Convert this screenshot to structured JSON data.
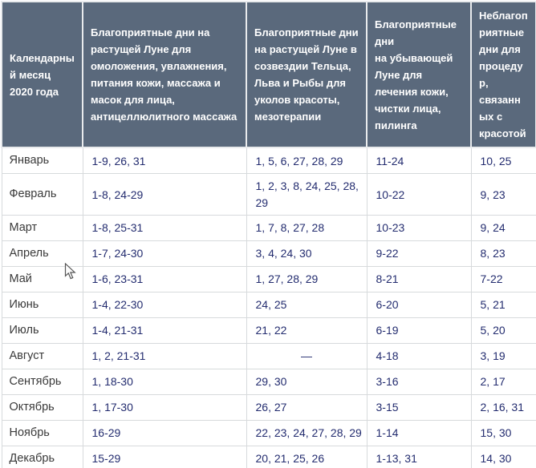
{
  "colors": {
    "header_bg": "#5a697c",
    "header_text": "#ffffff",
    "day_text": "#232c6f",
    "month_text": "#3a3a3a",
    "grid_line": "#d7dadc",
    "header_grid_line": "#e9ebed"
  },
  "table": {
    "columns": [
      {
        "key": "month",
        "label": "Календарный месяц 2020 года"
      },
      {
        "key": "rejuvenation-waxing-moon",
        "label": "Благоприятные дни на растущей Луне для омоложения, увлажнения, питания кожи, массажа и масок для лица, антицеллюлитного массажа"
      },
      {
        "key": "beauty-injections",
        "label": "Благоприятные дни на растущей Луне в созвездии Тельца, Льва и Рыбы для уколов красоты, мезотерапии"
      },
      {
        "key": "skin-treatment-waning-moon",
        "label": "Благоприятные дни\nна убывающей Луне для лечения кожи, чистки лица, пилинга"
      },
      {
        "key": "unfavorable",
        "label": "Неблагоприятные дни для процедур, связанных с красотой"
      }
    ],
    "rows": [
      {
        "month": "Январь",
        "values": [
          "1-9, 26, 31",
          "1, 5, 6, 27, 28, 29",
          "11-24",
          "10, 25"
        ]
      },
      {
        "month": "Февраль",
        "values": [
          "1-8, 24-29",
          "1, 2, 3, 8, 24, 25, 28, 29",
          "10-22",
          "9, 23"
        ]
      },
      {
        "month": "Март",
        "values": [
          "1-8, 25-31",
          "1, 7, 8, 27, 28",
          "10-23",
          "9, 24"
        ]
      },
      {
        "month": "Апрель",
        "values": [
          "1-7, 24-30",
          "3, 4, 24, 30",
          "9-22",
          "8, 23"
        ]
      },
      {
        "month": "Май",
        "values": [
          "1-6, 23-31",
          "1, 27, 28, 29",
          "8-21",
          "7-22"
        ]
      },
      {
        "month": "Июнь",
        "values": [
          "1-4, 22-30",
          "24, 25",
          "6-20",
          "5, 21"
        ]
      },
      {
        "month": "Июль",
        "values": [
          "1-4, 21-31",
          "21, 22",
          "6-19",
          "5, 20"
        ]
      },
      {
        "month": "Август",
        "values": [
          "1, 2, 21-31",
          "—",
          "4-18",
          "3, 19"
        ]
      },
      {
        "month": "Сентябрь",
        "values": [
          "1, 18-30",
          "29, 30",
          "3-16",
          "2, 17"
        ]
      },
      {
        "month": "Октябрь",
        "values": [
          "1, 17-30",
          "26, 27",
          "3-15",
          "2, 16, 31"
        ]
      },
      {
        "month": "Ноябрь",
        "values": [
          "16-29",
          "22, 23, 24, 27, 28, 29",
          "1-14",
          "15, 30"
        ]
      },
      {
        "month": "Декабрь",
        "values": [
          "15-29",
          "20, 21, 25, 26",
          "1-13, 31",
          "14, 30"
        ]
      }
    ]
  },
  "cursor": {
    "shape": "arrow-pointer"
  }
}
